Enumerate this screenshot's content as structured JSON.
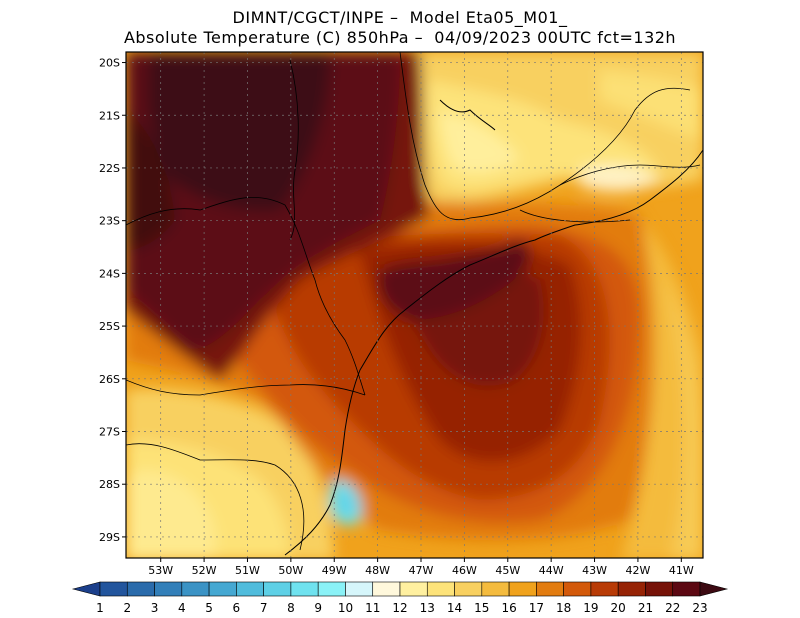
{
  "header": {
    "line1": "DIMNT/CGCT/INPE –  Model Eta05_M01_",
    "line2": "Absolute Temperature (C) 850hPa –  04/09/2023 00UTC fct=132h"
  },
  "map": {
    "lat_labels": [
      "20S",
      "21S",
      "22S",
      "23S",
      "24S",
      "25S",
      "26S",
      "27S",
      "28S",
      "29S"
    ],
    "lon_labels": [
      "53W",
      "52W",
      "51W",
      "50W",
      "49W",
      "48W",
      "47W",
      "46W",
      "45W",
      "44W",
      "43W",
      "42W",
      "41W"
    ],
    "lon_range": [
      -53.8,
      -40.5
    ],
    "lat_range": [
      -29.4,
      -19.8
    ],
    "grid": "dotted"
  },
  "colorbar": {
    "labels": [
      "1",
      "2",
      "3",
      "4",
      "5",
      "6",
      "7",
      "8",
      "9",
      "10",
      "11",
      "12",
      "13",
      "14",
      "15",
      "16",
      "17",
      "18",
      "19",
      "20",
      "21",
      "22",
      "23"
    ],
    "colors": [
      "#1b3f8b",
      "#22559d",
      "#2a6bab",
      "#327fb9",
      "#3b93c5",
      "#45a8d2",
      "#50bcdc",
      "#5ed0e6",
      "#6fe2ef",
      "#8af2f7",
      "#d6f6fb",
      "#fff8dc",
      "#fff0a0",
      "#fde37a",
      "#f8d060",
      "#f4bb3e",
      "#f0a21c",
      "#e27c10",
      "#d3590a",
      "#b83b06",
      "#962305",
      "#761208",
      "#5c0812",
      "#3c0a12"
    ]
  }
}
